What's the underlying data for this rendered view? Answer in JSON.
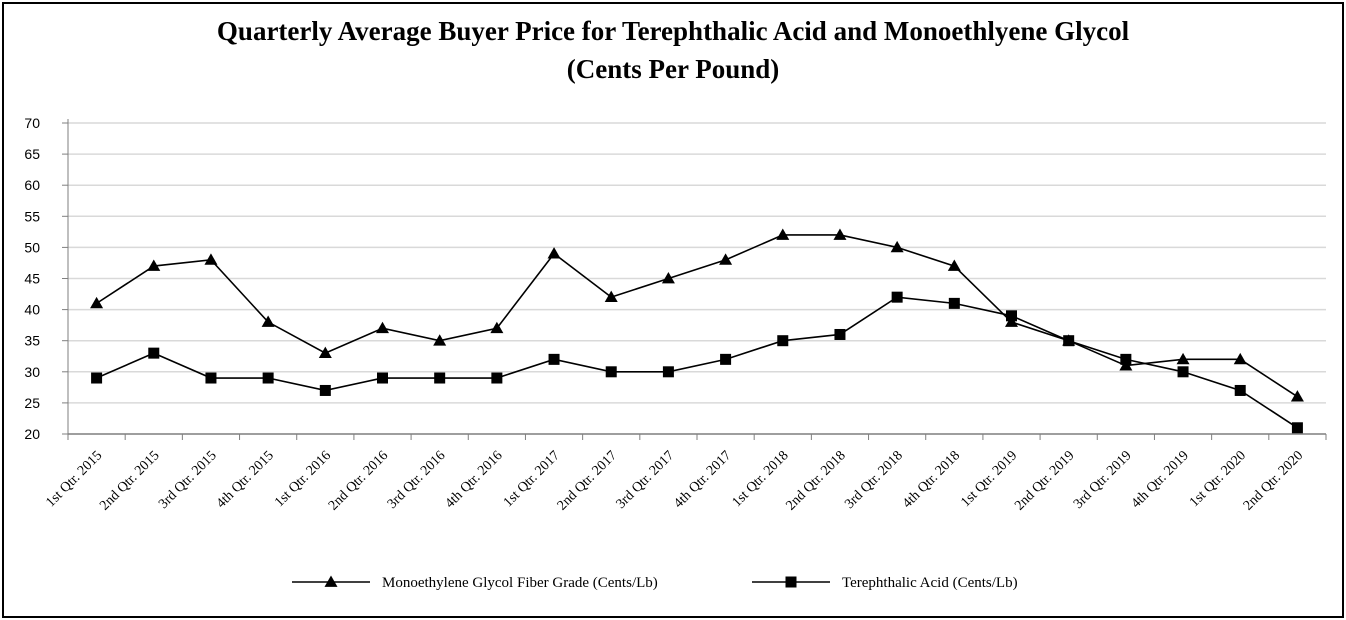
{
  "chart_data": {
    "type": "line",
    "title": "Quarterly Average Buyer Price for Terephthalic Acid and Monoethlyene Glycol",
    "subtitle": "(Cents Per Pound)",
    "xlabel": "",
    "ylabel": "",
    "ylim": [
      20,
      70
    ],
    "yticks": [
      "70",
      "65",
      "60",
      "55",
      "50",
      "45",
      "40",
      "35",
      "30",
      "25",
      "20"
    ],
    "grid": true,
    "legend_position": "bottom",
    "categories": [
      "1st Qtr. 2015",
      "2nd Qtr. 2015",
      "3rd Qtr. 2015",
      "4th Qtr. 2015",
      "1st Qtr. 2016",
      "2nd Qtr. 2016",
      "3rd Qtr. 2016",
      "4th Qtr. 2016",
      "1st Qtr. 2017",
      "2nd Qtr. 2017",
      "3rd Qtr. 2017",
      "4th Qtr. 2017",
      "1st Qtr. 2018",
      "2nd Qtr. 2018",
      "3rd Qtr. 2018",
      "4th Qtr. 2018",
      "1st Qtr. 2019",
      "2nd Qtr. 2019",
      "3rd Qtr. 2019",
      "4th Qtr. 2019",
      "1st Qtr. 2020",
      "2nd Qtr. 2020"
    ],
    "series": [
      {
        "name": "Monoethylene Glycol Fiber Grade (Cents/Lb)",
        "marker": "triangle",
        "color": "#000000",
        "values": [
          41,
          47,
          48,
          38,
          33,
          37,
          35,
          37,
          49,
          42,
          45,
          48,
          52,
          52,
          50,
          47,
          38,
          35,
          31,
          32,
          32,
          26
        ]
      },
      {
        "name": "Terephthalic Acid (Cents/Lb)",
        "marker": "square",
        "color": "#000000",
        "values": [
          29,
          33,
          29,
          29,
          27,
          29,
          29,
          29,
          32,
          30,
          30,
          32,
          35,
          36,
          42,
          41,
          39,
          35,
          32,
          30,
          27,
          21
        ]
      }
    ]
  }
}
